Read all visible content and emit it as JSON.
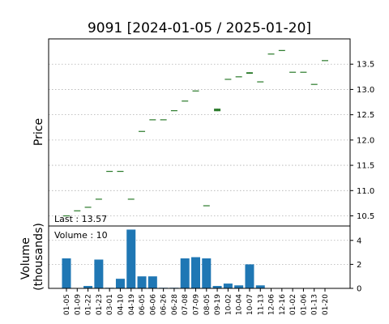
{
  "chart_data": {
    "type": "candlestick_with_volume",
    "title": "9091   [2024-01-05 / 2025-01-20]",
    "price_panel": {
      "ylabel": "Price",
      "ylim": [
        10.3,
        14.0
      ],
      "yticks": [
        10.5,
        11.0,
        11.5,
        12.0,
        12.5,
        13.0,
        13.5
      ],
      "grid": true,
      "annotation": "Last : 13.57"
    },
    "volume_panel": {
      "ylabel": "Volume\n(thousands)",
      "ylim": [
        0,
        5.2
      ],
      "yticks": [
        0,
        2,
        4
      ],
      "grid": true,
      "annotation": "Volume : 10"
    },
    "x_ticklabels": [
      "01-05",
      "01-09",
      "01-22",
      "01-23",
      "03-01",
      "04-10",
      "04-19",
      "06-05",
      "06-06",
      "06-26",
      "06-28",
      "07-08",
      "07-09",
      "08-05",
      "09-19",
      "10-02",
      "10-04",
      "10-07",
      "11-13",
      "12-06",
      "12-16",
      "01-02",
      "01-06",
      "01-13",
      "01-20"
    ],
    "candles": [
      {
        "date": "01-05",
        "open": 10.5,
        "high": 10.5,
        "low": 10.5,
        "close": 10.5
      },
      {
        "date": "01-09",
        "open": 10.6,
        "high": 10.6,
        "low": 10.6,
        "close": 10.6
      },
      {
        "date": "01-22",
        "open": 10.67,
        "high": 10.67,
        "low": 10.67,
        "close": 10.67
      },
      {
        "date": "01-23",
        "open": 10.83,
        "high": 10.83,
        "low": 10.83,
        "close": 10.83
      },
      {
        "date": "03-01",
        "open": 11.38,
        "high": 11.38,
        "low": 11.38,
        "close": 11.38
      },
      {
        "date": "04-10",
        "open": 11.38,
        "high": 11.38,
        "low": 11.38,
        "close": 11.38
      },
      {
        "date": "04-19",
        "open": 10.83,
        "high": 10.83,
        "low": 10.83,
        "close": 10.83
      },
      {
        "date": "06-05",
        "open": 12.17,
        "high": 12.17,
        "low": 12.17,
        "close": 12.17
      },
      {
        "date": "06-06",
        "open": 12.4,
        "high": 12.4,
        "low": 12.4,
        "close": 12.4
      },
      {
        "date": "06-26",
        "open": 12.4,
        "high": 12.4,
        "low": 12.4,
        "close": 12.4
      },
      {
        "date": "06-28",
        "open": 12.58,
        "high": 12.58,
        "low": 12.58,
        "close": 12.58
      },
      {
        "date": "07-08",
        "open": 12.77,
        "high": 12.77,
        "low": 12.77,
        "close": 12.77
      },
      {
        "date": "07-09",
        "open": 12.97,
        "high": 12.97,
        "low": 12.97,
        "close": 12.97
      },
      {
        "date": "08-05",
        "open": 10.7,
        "high": 10.7,
        "low": 10.7,
        "close": 10.7
      },
      {
        "date": "09-19",
        "open": 12.57,
        "high": 12.62,
        "low": 12.57,
        "close": 12.62
      },
      {
        "date": "10-02",
        "open": 13.2,
        "high": 13.2,
        "low": 13.2,
        "close": 13.2
      },
      {
        "date": "10-04",
        "open": 13.25,
        "high": 13.25,
        "low": 13.25,
        "close": 13.25
      },
      {
        "date": "10-07",
        "open": 13.31,
        "high": 13.34,
        "low": 13.31,
        "close": 13.34
      },
      {
        "date": "11-13",
        "open": 13.15,
        "high": 13.15,
        "low": 13.15,
        "close": 13.15
      },
      {
        "date": "12-06",
        "open": 13.7,
        "high": 13.7,
        "low": 13.7,
        "close": 13.7
      },
      {
        "date": "12-16",
        "open": 13.77,
        "high": 13.77,
        "low": 13.77,
        "close": 13.77
      },
      {
        "date": "01-02",
        "open": 13.34,
        "high": 13.34,
        "low": 13.34,
        "close": 13.34
      },
      {
        "date": "01-06",
        "open": 13.34,
        "high": 13.34,
        "low": 13.34,
        "close": 13.34
      },
      {
        "date": "01-13",
        "open": 13.1,
        "high": 13.1,
        "low": 13.1,
        "close": 13.1
      },
      {
        "date": "01-20",
        "open": 13.57,
        "high": 13.57,
        "low": 13.57,
        "close": 13.57
      }
    ],
    "volumes": [
      2.5,
      0.03,
      0.2,
      2.4,
      0.05,
      0.8,
      4.9,
      1.0,
      1.0,
      0.05,
      0.05,
      2.5,
      2.6,
      2.5,
      0.2,
      0.4,
      0.25,
      2.0,
      0.25,
      0.01,
      0.01,
      0.01,
      0.01,
      0.01,
      0.01
    ],
    "colors": {
      "up": "#2a7a2a",
      "down": "#b22222",
      "volume": "#1f77b4"
    }
  }
}
